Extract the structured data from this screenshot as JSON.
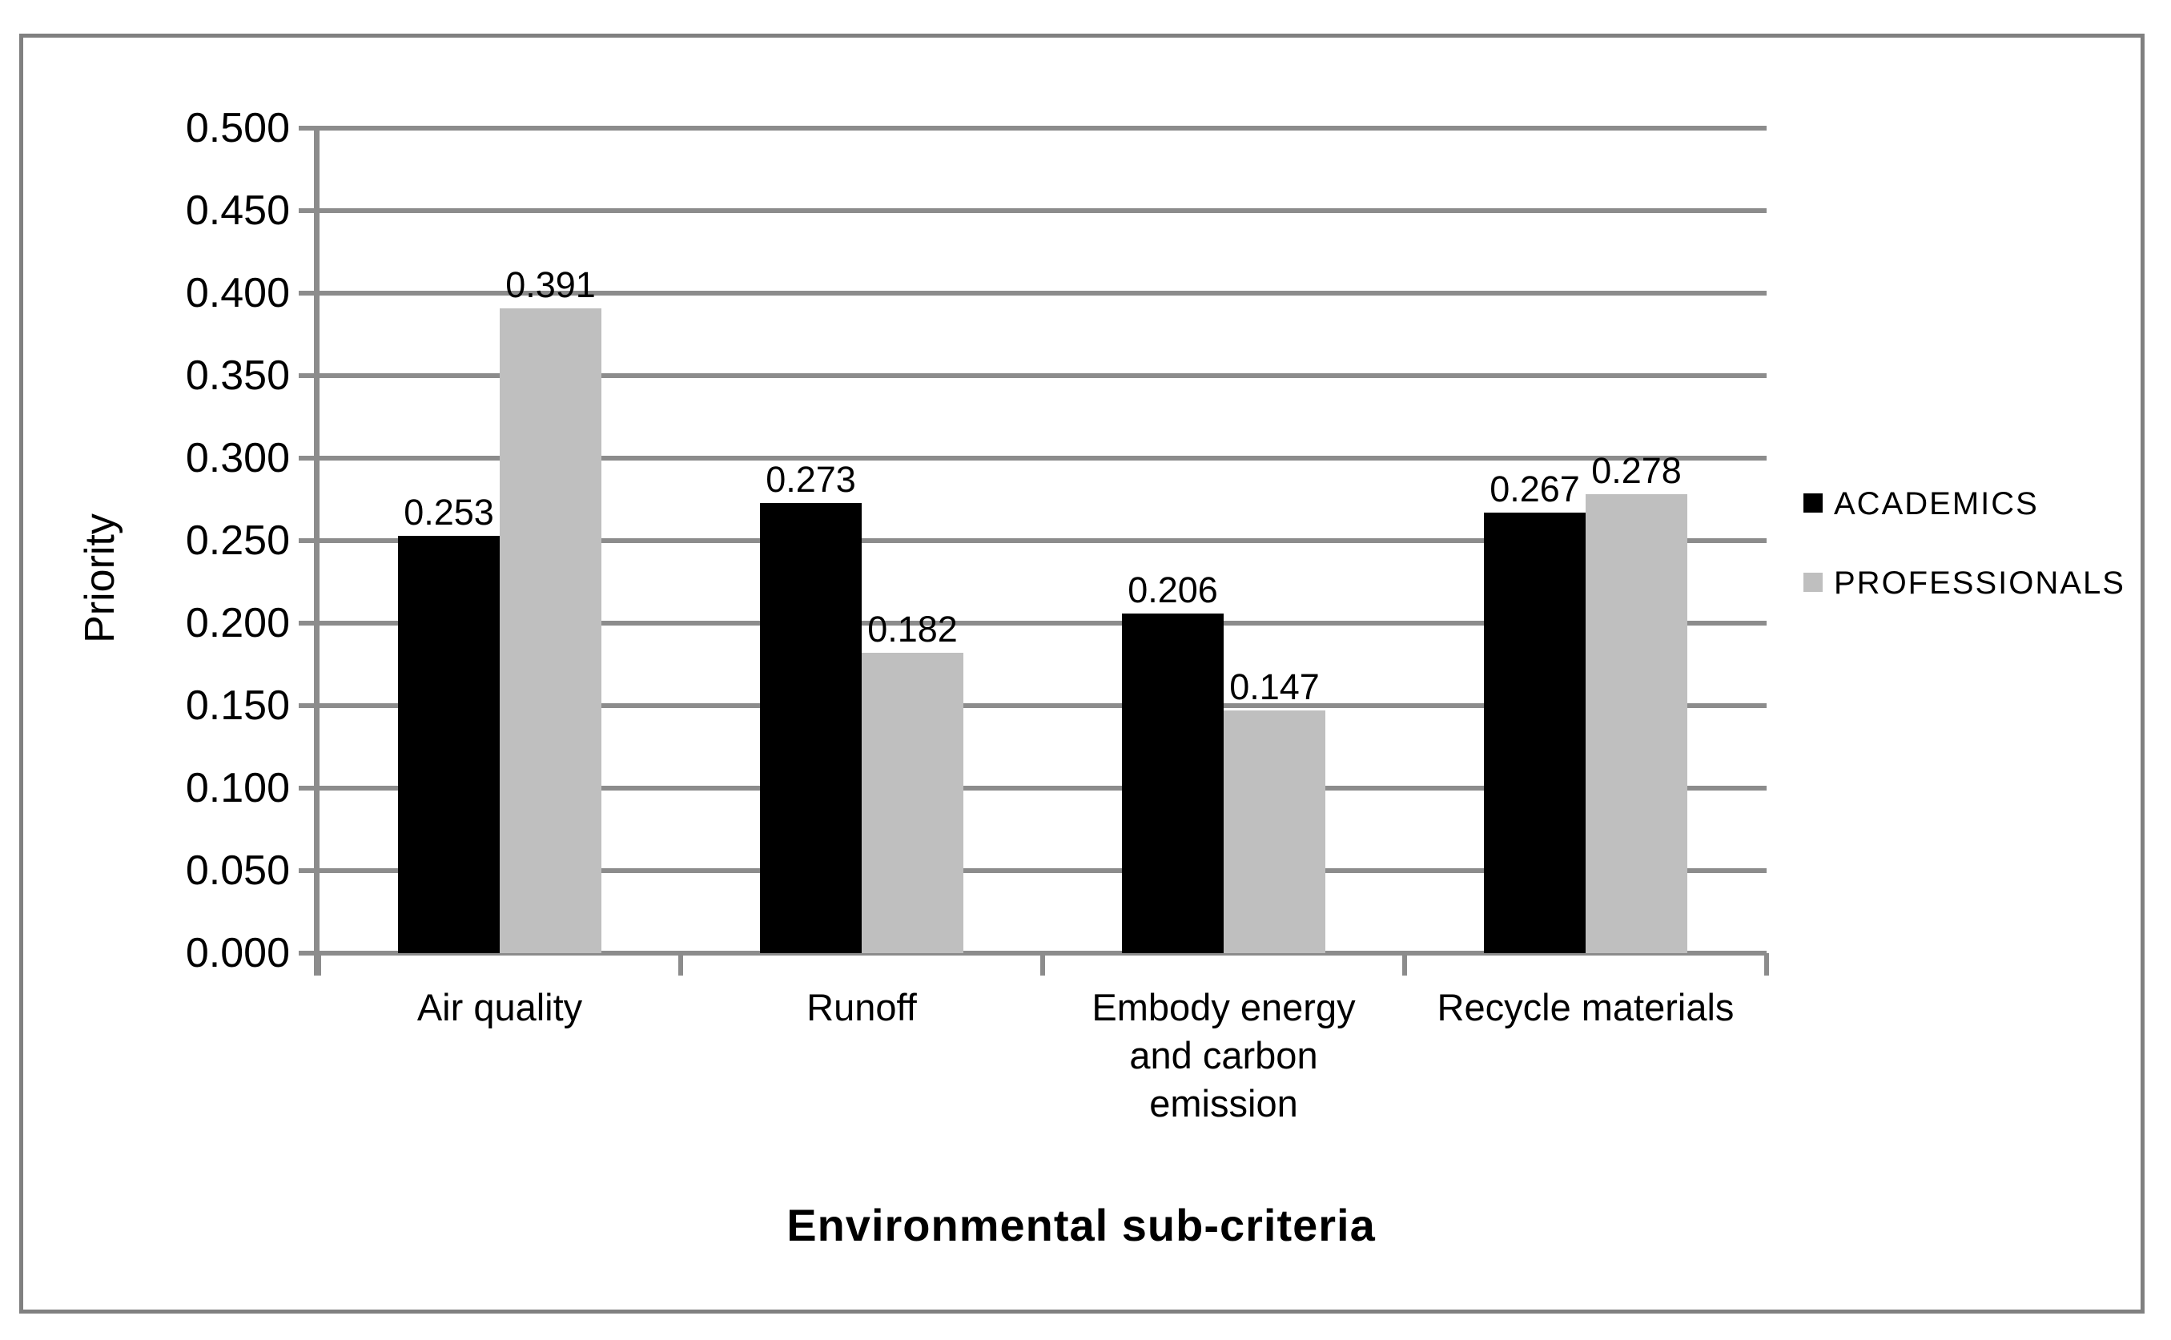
{
  "figure": {
    "background": "#FFFFFF",
    "border_color": "#808080"
  },
  "chart_data": {
    "type": "bar",
    "title": "",
    "xlabel": "Environmental sub-criteria",
    "ylabel": "Priority",
    "categories": [
      "Air quality",
      "Runoff",
      "Embody energy\nand carbon\nemission",
      "Recycle materials"
    ],
    "series": [
      {
        "name": "ACADEMICS",
        "color": "#000000",
        "values": [
          0.253,
          0.273,
          0.206,
          0.267
        ]
      },
      {
        "name": "PROFESSIONALS",
        "color": "#BFBFBF",
        "values": [
          0.391,
          0.182,
          0.147,
          0.278
        ]
      }
    ],
    "ylim": [
      0,
      0.5
    ],
    "ytick_step": 0.05,
    "ytick_decimals": 3,
    "ytick_labels": [
      "0.000",
      "0.050",
      "0.100",
      "0.150",
      "0.200",
      "0.250",
      "0.300",
      "0.350",
      "0.400",
      "0.450",
      "0.500"
    ],
    "data_labels": true,
    "grid": true,
    "legend_position": "right",
    "gridline_color": "#8C8C8C",
    "axis_color": "#8C8C8C",
    "text_color": "#000000"
  }
}
